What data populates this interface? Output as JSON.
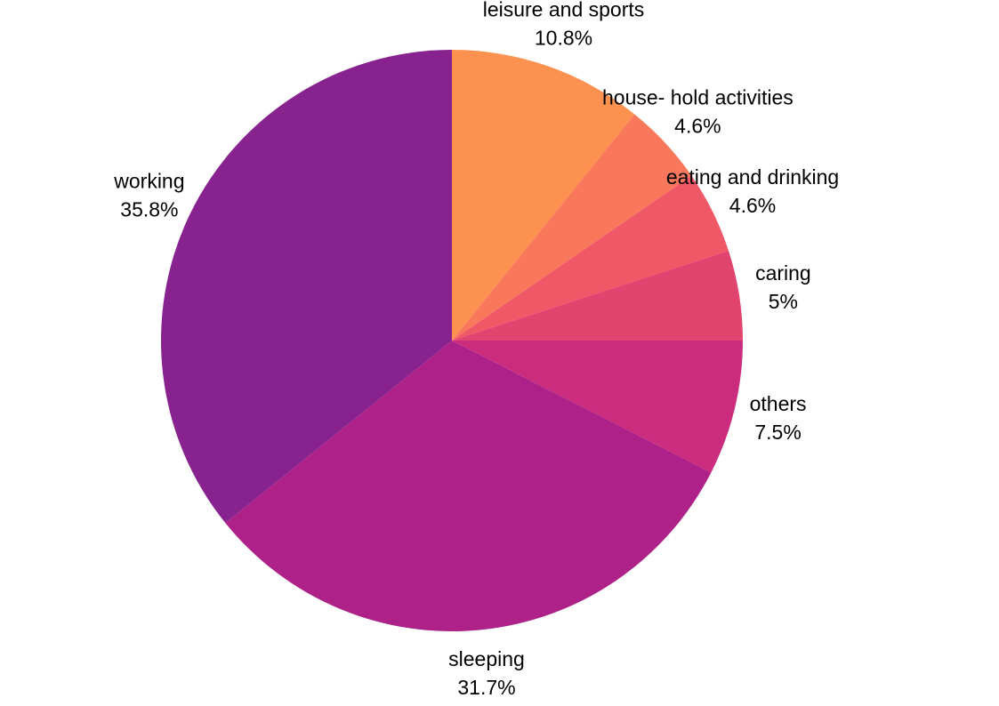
{
  "chart_data": {
    "type": "pie",
    "title": "",
    "start": "12 o'clock",
    "direction": "clockwise",
    "slices": [
      {
        "label": "leisure and sports",
        "value": 10.8,
        "value_label": "10.8%",
        "color": "#FD9150"
      },
      {
        "label": "house- hold activities",
        "value": 4.6,
        "value_label": "4.6%",
        "color": "#F9785B"
      },
      {
        "label": "eating and drinking",
        "value": 4.6,
        "value_label": "4.6%",
        "color": "#F05868"
      },
      {
        "label": "caring",
        "value": 5,
        "value_label": "5%",
        "color": "#E24470"
      },
      {
        "label": "others",
        "value": 7.5,
        "value_label": "7.5%",
        "color": "#CC2C7E"
      },
      {
        "label": "sleeping",
        "value": 31.7,
        "value_label": "31.7%",
        "color": "#AE2189"
      },
      {
        "label": "working",
        "value": 35.8,
        "value_label": "35.8%",
        "color": "#88228F"
      }
    ]
  }
}
